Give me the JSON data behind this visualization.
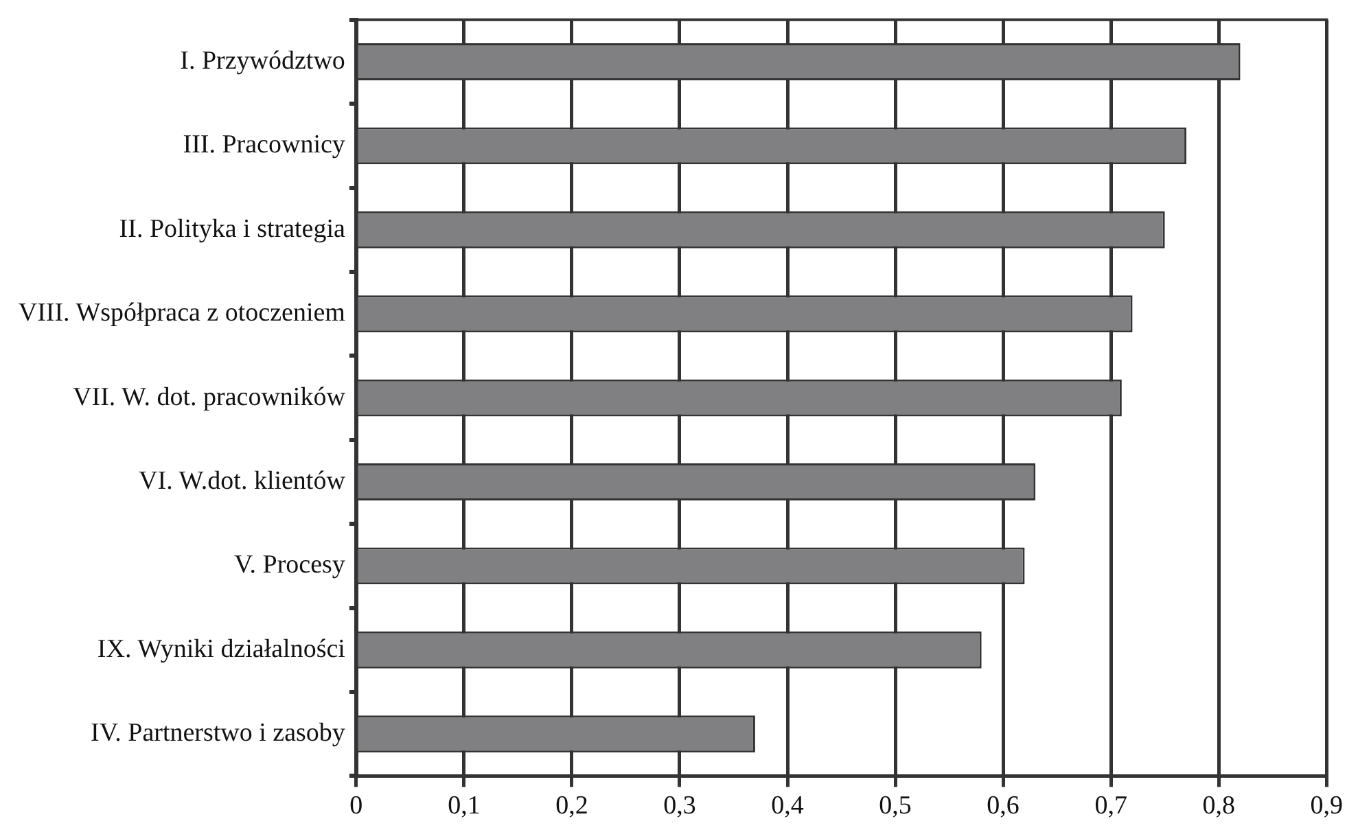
{
  "chart_data": {
    "type": "bar",
    "orientation": "horizontal",
    "categories": [
      "I. Przywództwo",
      "III. Pracownicy",
      "II. Polityka i strategia",
      "VIII. Współpraca z otoczeniem",
      "VII. W. dot. pracowników",
      "VI. W.dot. klientów",
      "V. Procesy",
      "IX. Wyniki działalności",
      "IV. Partnerstwo i zasoby"
    ],
    "values": [
      0.82,
      0.77,
      0.75,
      0.72,
      0.71,
      0.63,
      0.62,
      0.58,
      0.37
    ],
    "color": "#808083",
    "xlim": [
      0,
      0.9
    ],
    "xticks": [
      {
        "value": 0,
        "label": "0"
      },
      {
        "value": 0.1,
        "label": "0,1"
      },
      {
        "value": 0.2,
        "label": "0,2"
      },
      {
        "value": 0.3,
        "label": "0,3"
      },
      {
        "value": 0.4,
        "label": "0,4"
      },
      {
        "value": 0.5,
        "label": "0,5"
      },
      {
        "value": 0.6,
        "label": "0,6"
      },
      {
        "value": 0.7,
        "label": "0,7"
      },
      {
        "value": 0.8,
        "label": "0,8"
      },
      {
        "value": 0.9,
        "label": "0,9"
      }
    ],
    "grid": "x",
    "legend": false
  }
}
